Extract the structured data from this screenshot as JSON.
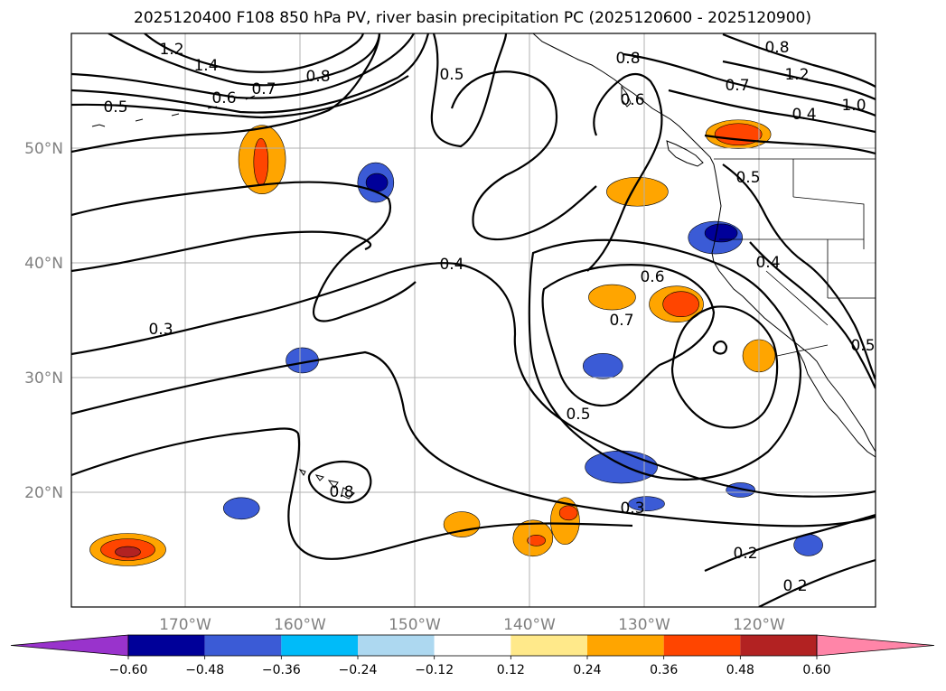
{
  "title": "2025120400 F108 850 hPa PV, river basin precipitation PC (2025120600 - 2025120900)",
  "lat_labels": [
    "50°N",
    "40°N",
    "30°N",
    "20°N"
  ],
  "lon_labels": [
    "170°W",
    "160°W",
    "150°W",
    "140°W",
    "130°W",
    "120°W"
  ],
  "colorbar": {
    "ticks": [
      "−0.60",
      "−0.48",
      "−0.36",
      "−0.24",
      "−0.12",
      "0.12",
      "0.24",
      "0.36",
      "0.48",
      "0.60"
    ],
    "colors": [
      "#9933cc",
      "#000099",
      "#3b5bd6",
      "#00bbf9",
      "#add8f0",
      "#ffffff",
      "#ffe98a",
      "#ffa500",
      "#ff4500",
      "#b22222",
      "#ff85a8"
    ]
  },
  "contour_labels": [
    "1.2",
    "1.4",
    "0.8",
    "0.7",
    "0.6",
    "0.5",
    "0.8",
    "0.8",
    "0.6",
    "1.2",
    "1.0",
    "0.7",
    "0.4",
    "0.5",
    "0.5",
    "0.4",
    "0.4",
    "0.6",
    "0.7",
    "0.3",
    "0.5",
    "0.3",
    "0.8",
    "0.2",
    "0.2",
    "0.5"
  ],
  "precip_blobs": [
    {
      "lon": -163.3,
      "lat": 49.0,
      "level": "0.24"
    },
    {
      "lon": -163.4,
      "lat": 48.8,
      "level": "0.36"
    },
    {
      "lon": -153.4,
      "lat": 47.0,
      "level": "-0.36"
    },
    {
      "lon": -153.3,
      "lat": 47.0,
      "level": "-0.48"
    },
    {
      "lon": -175.0,
      "lat": 15.0,
      "level": "0.24"
    },
    {
      "lon": -175.0,
      "lat": 15.0,
      "level": "0.36"
    },
    {
      "lon": -175.0,
      "lat": 14.8,
      "level": "0.48"
    },
    {
      "lon": -165.1,
      "lat": 18.6,
      "level": "-0.36"
    },
    {
      "lon": -159.8,
      "lat": 31.5,
      "level": "-0.36"
    },
    {
      "lon": -130.6,
      "lat": 46.2,
      "level": "0.24"
    },
    {
      "lon": -121.8,
      "lat": 51.2,
      "level": "0.24"
    },
    {
      "lon": -121.8,
      "lat": 51.2,
      "level": "0.36"
    },
    {
      "lon": -123.8,
      "lat": 42.2,
      "level": "-0.36"
    },
    {
      "lon": -123.3,
      "lat": 42.6,
      "level": "-0.48"
    },
    {
      "lon": -132.8,
      "lat": 37.0,
      "level": "0.24"
    },
    {
      "lon": -127.2,
      "lat": 36.4,
      "level": "0.24"
    },
    {
      "lon": -126.8,
      "lat": 36.4,
      "level": "0.36"
    },
    {
      "lon": -133.6,
      "lat": 31.0,
      "level": "-0.36"
    },
    {
      "lon": -120.0,
      "lat": 31.9,
      "level": "0.24"
    },
    {
      "lon": -132.0,
      "lat": 22.2,
      "level": "-0.36"
    },
    {
      "lon": -129.8,
      "lat": 19.0,
      "level": "-0.36"
    },
    {
      "lon": -121.6,
      "lat": 20.2,
      "level": "-0.36"
    },
    {
      "lon": -115.7,
      "lat": 15.4,
      "level": "-0.36"
    },
    {
      "lon": -145.9,
      "lat": 17.2,
      "level": "0.24"
    },
    {
      "lon": -139.7,
      "lat": 16.0,
      "level": "0.24"
    },
    {
      "lon": -139.4,
      "lat": 15.8,
      "level": "0.36"
    },
    {
      "lon": -136.9,
      "lat": 17.5,
      "level": "0.24"
    },
    {
      "lon": -136.6,
      "lat": 18.2,
      "level": "0.36"
    }
  ]
}
